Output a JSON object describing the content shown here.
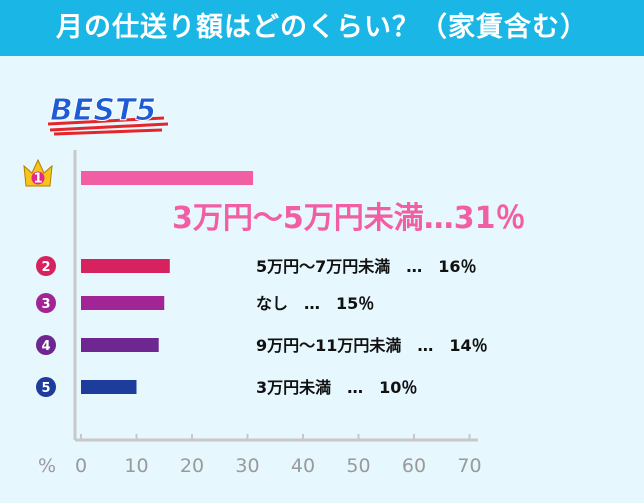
{
  "header": {
    "title": "月の仕送り額はどのくらい？（家賃含む）"
  },
  "badge": {
    "text": "BEST5"
  },
  "axis": {
    "unit_label": "%"
  },
  "colors": {
    "header_bg": "#1ab6e6",
    "background": "#e6f7fd",
    "bars": [
      "#f25ea3",
      "#d6235f",
      "#a22596",
      "#6e2690",
      "#1e3c9c"
    ]
  },
  "chart_data": {
    "type": "bar",
    "orientation": "horizontal",
    "title": "月の仕送り額はどのくらい？（家賃含む）",
    "categories": [
      "3万円～5万円未満",
      "5万円～7万円未満",
      "なし",
      "9万円～11万円未満",
      "3万円未満"
    ],
    "values": [
      31,
      16,
      15,
      14,
      10
    ],
    "ranks": [
      "1",
      "2",
      "3",
      "4",
      "5"
    ],
    "labels": [
      "3万円～5万円未満…31％",
      "5万円～7万円未満　…　16％",
      "なし　…　15％",
      "9万円～11万円未満　…　14％",
      "3万円未満　…　10％"
    ],
    "xlim": [
      0,
      70
    ],
    "xticks": [
      "0",
      "10",
      "20",
      "30",
      "40",
      "50",
      "60",
      "70"
    ],
    "xlabel": "%",
    "grid": false,
    "legend": "none"
  }
}
